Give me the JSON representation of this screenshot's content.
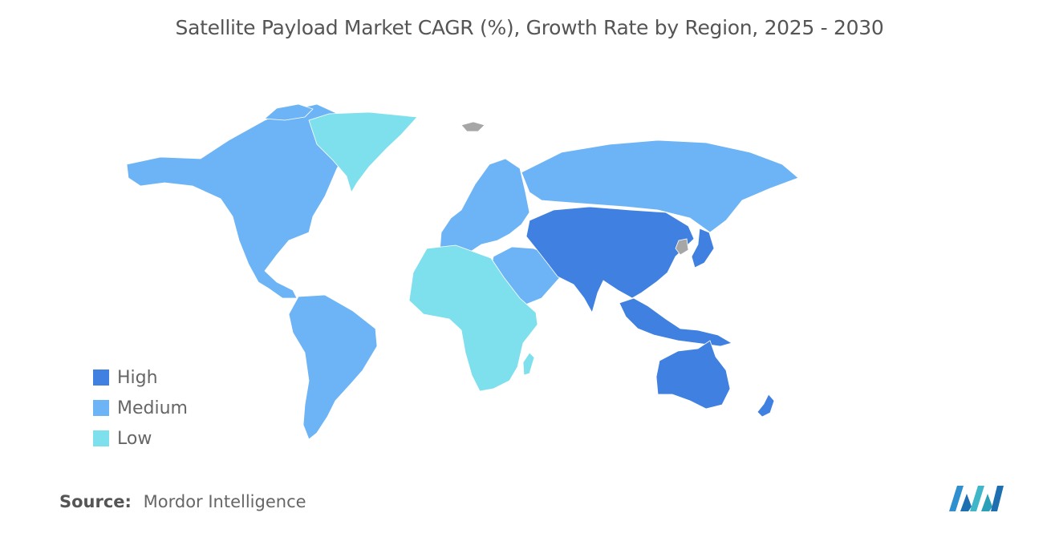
{
  "title": "Satellite Payload Market CAGR (%), Growth Rate by Region, 2025 - 2030",
  "legend": [
    {
      "label": "High",
      "color": "#3f80e0"
    },
    {
      "label": "Medium",
      "color": "#6cb4f5"
    },
    {
      "label": "Low",
      "color": "#7fe0ed"
    }
  ],
  "no_data_color": "#a6a6a6",
  "regions": [
    {
      "name": "North America",
      "level": "Medium"
    },
    {
      "name": "Greenland",
      "level": "Low"
    },
    {
      "name": "South America",
      "level": "Medium"
    },
    {
      "name": "Europe",
      "level": "Medium"
    },
    {
      "name": "Russia",
      "level": "Medium"
    },
    {
      "name": "Middle East",
      "level": "Medium"
    },
    {
      "name": "Africa",
      "level": "Low"
    },
    {
      "name": "Asia-Pacific",
      "level": "High"
    },
    {
      "name": "Australia",
      "level": "High"
    },
    {
      "name": "New Zealand",
      "level": "High"
    }
  ],
  "source": {
    "label": "Source:",
    "value": "Mordor Intelligence"
  },
  "logo": {
    "icon": "mordor-intelligence-logo-icon"
  }
}
